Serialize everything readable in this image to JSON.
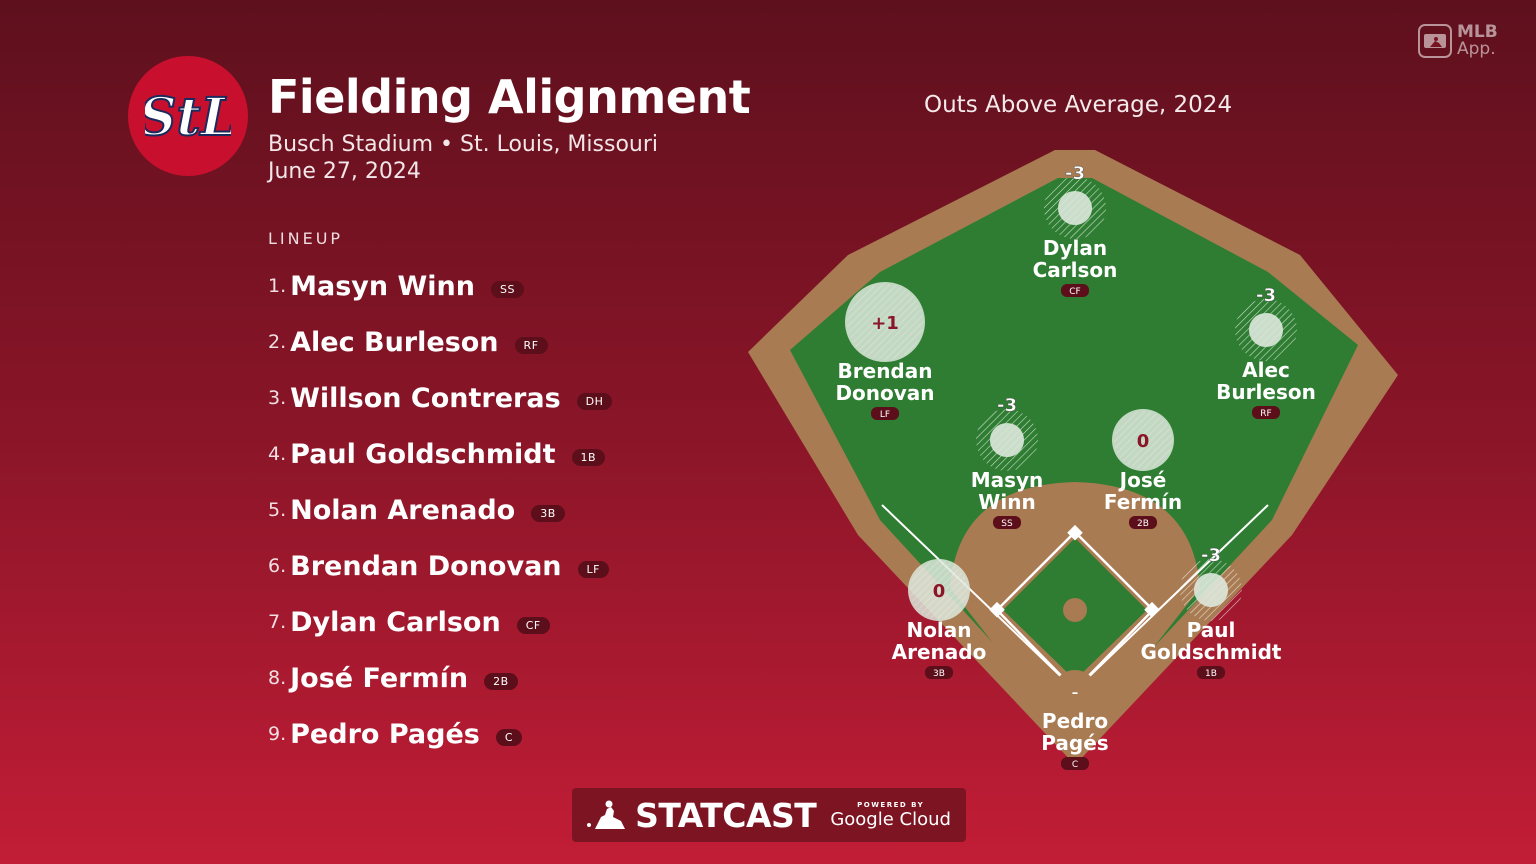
{
  "header": {
    "title": "Fielding Alignment",
    "venue_line": "Busch Stadium • St. Louis, Missouri",
    "date": "June 27, 2024"
  },
  "branding": {
    "team_logo_icon": "stl-cardinals-logo-icon",
    "team_logo_text": "StL",
    "mlb_app_icon": "mlb-app-icon",
    "mlb_app_line1": "MLB",
    "mlb_app_line2": "App.",
    "statcast_icon": "mlb-batter-logo-icon",
    "statcast_label": "STATCAST",
    "powered_by": "POWERED BY",
    "google_cloud": "Google Cloud"
  },
  "colors": {
    "background_top": "#5e101d",
    "background_bottom": "#c21d36",
    "field_grass": "#2e7d32",
    "field_dirt": "#a87b52",
    "badge": "#5c0e1a"
  },
  "lineup": {
    "heading": "LINEUP",
    "players": [
      {
        "num": "1.",
        "name": "Masyn Winn",
        "pos": "SS"
      },
      {
        "num": "2.",
        "name": "Alec Burleson",
        "pos": "RF"
      },
      {
        "num": "3.",
        "name": "Willson Contreras",
        "pos": "DH"
      },
      {
        "num": "4.",
        "name": "Paul Goldschmidt",
        "pos": "1B"
      },
      {
        "num": "5.",
        "name": "Nolan Arenado",
        "pos": "3B"
      },
      {
        "num": "6.",
        "name": "Brendan Donovan",
        "pos": "LF"
      },
      {
        "num": "7.",
        "name": "Dylan Carlson",
        "pos": "CF"
      },
      {
        "num": "8.",
        "name": "José Fermín",
        "pos": "2B"
      },
      {
        "num": "9.",
        "name": "Pedro Pagés",
        "pos": "C"
      }
    ]
  },
  "chart_title": "Outs Above Average, 2024",
  "chart_data": {
    "type": "scatter",
    "title": "Outs Above Average, 2024",
    "metric": "Outs Above Average",
    "fielders": [
      {
        "first": "Dylan",
        "last": "Carlson",
        "pos": "CF",
        "oaa": -3,
        "label": "-3"
      },
      {
        "first": "Brendan",
        "last": "Donovan",
        "pos": "LF",
        "oaa": 1,
        "label": "+1"
      },
      {
        "first": "Alec",
        "last": "Burleson",
        "pos": "RF",
        "oaa": -3,
        "label": "-3"
      },
      {
        "first": "Masyn",
        "last": "Winn",
        "pos": "SS",
        "oaa": -3,
        "label": "-3"
      },
      {
        "first": "José",
        "last": "Fermín",
        "pos": "2B",
        "oaa": 0,
        "label": "0"
      },
      {
        "first": "Nolan",
        "last": "Arenado",
        "pos": "3B",
        "oaa": 0,
        "label": "0"
      },
      {
        "first": "Paul",
        "last": "Goldschmidt",
        "pos": "1B",
        "oaa": -3,
        "label": "-3"
      },
      {
        "first": "Pedro",
        "last": "Pagés",
        "pos": "C",
        "oaa": null,
        "label": "–"
      }
    ]
  }
}
